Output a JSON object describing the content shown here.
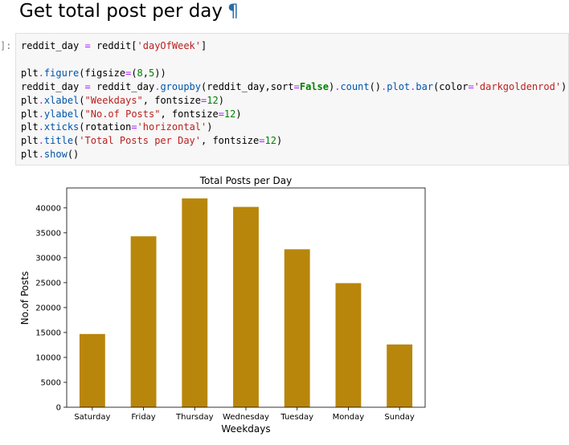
{
  "heading": {
    "title": "Get total post per day",
    "anchor": "¶"
  },
  "cell": {
    "prompt": "]:",
    "lines": [
      "reddit_day = reddit['dayOfWeek']",
      "",
      "plt.figure(figsize=(8,5))",
      "reddit_day = reddit_day.groupby(reddit_day,sort=False).count().plot.bar(color='darkgoldenrod')",
      "plt.xlabel(\"Weekdays\", fontsize=12)",
      "plt.ylabel(\"No.of Posts\", fontsize=12)",
      "plt.xticks(rotation='horizontal')",
      "plt.title('Total Posts per Day', fontsize=12)",
      "plt.show()"
    ]
  },
  "chart_data": {
    "type": "bar",
    "title": "Total Posts per Day",
    "xlabel": "Weekdays",
    "ylabel": "No.of Posts",
    "categories": [
      "Saturday",
      "Friday",
      "Thursday",
      "Wednesday",
      "Tuesday",
      "Monday",
      "Sunday"
    ],
    "values": [
      14700,
      34300,
      41900,
      40200,
      31700,
      24900,
      12600
    ],
    "yticks": [
      0,
      5000,
      10000,
      15000,
      20000,
      25000,
      30000,
      35000,
      40000
    ],
    "ylim": [
      0,
      44000
    ],
    "bar_color": "#b8860b",
    "grid": false,
    "legend": "none"
  }
}
